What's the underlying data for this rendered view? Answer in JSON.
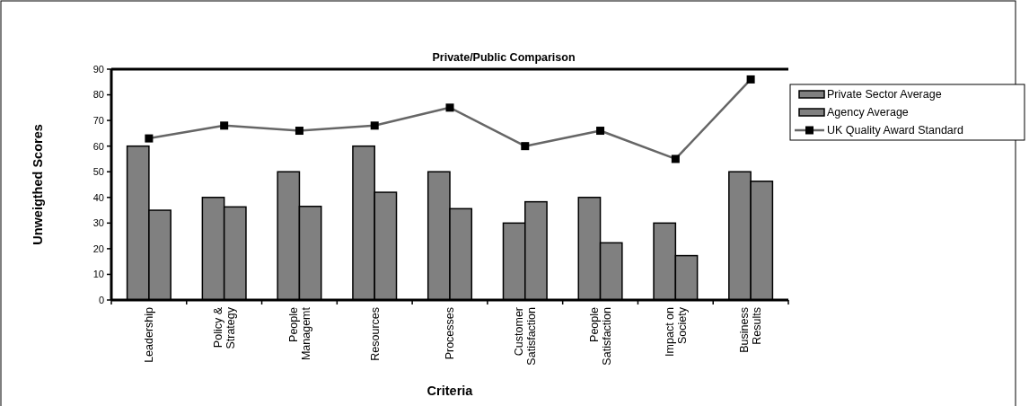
{
  "chart_data": {
    "type": "bar",
    "title": "Private/Public Comparison",
    "xlabel": "Criteria",
    "ylabel": "Unweigthed Scores",
    "categories": [
      "Leadership",
      "Policy & Strategy",
      "People Managemt",
      "Resources",
      "Processes",
      "Customer Satisfaction",
      "People Satisfaction",
      "Impact on Society",
      "Business Results"
    ],
    "series": [
      {
        "name": "Private Sector Average",
        "color": "#808080",
        "values": [
          60,
          40,
          50,
          60,
          50,
          30,
          40,
          30,
          50
        ]
      },
      {
        "name": "Agency Average",
        "color": "#808080",
        "values": [
          35,
          36.3,
          36.5,
          42,
          35.6,
          38.3,
          22.3,
          17.3,
          46.3
        ]
      },
      {
        "name": "UK Quality Award Standard",
        "type": "line",
        "color": "#666666",
        "marker": "square",
        "values": [
          63,
          68,
          66,
          68,
          75,
          60,
          66,
          55,
          86
        ]
      }
    ],
    "ylim": [
      0,
      90
    ],
    "yticks": [
      0,
      10,
      20,
      30,
      40,
      50,
      60,
      70,
      80,
      90
    ],
    "grid": false,
    "legend": "right"
  }
}
